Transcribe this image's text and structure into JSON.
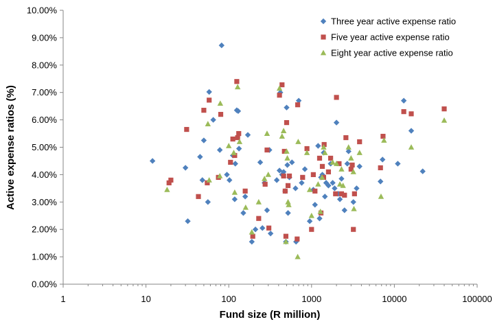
{
  "chart_data": {
    "type": "scatter",
    "title": "",
    "xlabel": "Fund size (R million)",
    "ylabel": "Active expense ratios (%)",
    "xscale": "log",
    "xlim": [
      1,
      100000
    ],
    "ylim": [
      0,
      10
    ],
    "x_ticks": [
      "1",
      "10",
      "100",
      "1000",
      "10000",
      "100000"
    ],
    "y_ticks": [
      "0.00%",
      "1.00%",
      "2.00%",
      "3.00%",
      "4.00%",
      "5.00%",
      "6.00%",
      "7.00%",
      "8.00%",
      "9.00%",
      "10.00%"
    ],
    "grid": "none",
    "legend_position": "top-right",
    "series": [
      {
        "name": "Three year active expense ratio",
        "color": "#4F81BD",
        "marker": "diamond",
        "points": [
          [
            12,
            4.5
          ],
          [
            30,
            4.25
          ],
          [
            32,
            2.3
          ],
          [
            45,
            4.65
          ],
          [
            48,
            3.8
          ],
          [
            50,
            5.25
          ],
          [
            56,
            3.0
          ],
          [
            58,
            7.02
          ],
          [
            65,
            6.0
          ],
          [
            78,
            4.9
          ],
          [
            82,
            8.72
          ],
          [
            95,
            4.0
          ],
          [
            102,
            3.8
          ],
          [
            112,
            4.7
          ],
          [
            118,
            3.1
          ],
          [
            120,
            4.4
          ],
          [
            125,
            6.35
          ],
          [
            130,
            6.32
          ],
          [
            133,
            4.95
          ],
          [
            150,
            2.6
          ],
          [
            158,
            3.2
          ],
          [
            170,
            5.45
          ],
          [
            190,
            1.55
          ],
          [
            210,
            2.0
          ],
          [
            240,
            4.45
          ],
          [
            255,
            2.05
          ],
          [
            270,
            3.7
          ],
          [
            290,
            2.7
          ],
          [
            310,
            4.9
          ],
          [
            320,
            1.85
          ],
          [
            380,
            3.8
          ],
          [
            410,
            4.15
          ],
          [
            420,
            7.0
          ],
          [
            440,
            4.0
          ],
          [
            460,
            4.1
          ],
          [
            480,
            3.4
          ],
          [
            490,
            1.55
          ],
          [
            500,
            6.45
          ],
          [
            510,
            4.35
          ],
          [
            520,
            2.6
          ],
          [
            540,
            3.9
          ],
          [
            580,
            4.45
          ],
          [
            640,
            3.5
          ],
          [
            650,
            1.55
          ],
          [
            700,
            6.7
          ],
          [
            760,
            3.7
          ],
          [
            830,
            4.2
          ],
          [
            950,
            2.3
          ],
          [
            1050,
            3.45
          ],
          [
            1100,
            2.9
          ],
          [
            1200,
            5.05
          ],
          [
            1250,
            2.4
          ],
          [
            1300,
            3.9
          ],
          [
            1350,
            4.0
          ],
          [
            1400,
            4.8
          ],
          [
            1450,
            3.2
          ],
          [
            1500,
            3.7
          ],
          [
            1600,
            3.6
          ],
          [
            1700,
            4.4
          ],
          [
            1800,
            3.7
          ],
          [
            1900,
            3.5
          ],
          [
            2000,
            5.9
          ],
          [
            2100,
            3.3
          ],
          [
            2200,
            3.1
          ],
          [
            2300,
            3.85
          ],
          [
            2500,
            2.7
          ],
          [
            2700,
            4.4
          ],
          [
            2800,
            4.85
          ],
          [
            3200,
            3.0
          ],
          [
            3500,
            3.5
          ],
          [
            3800,
            4.3
          ],
          [
            6800,
            3.75
          ],
          [
            7200,
            4.55
          ],
          [
            11000,
            4.4
          ],
          [
            13000,
            6.7
          ],
          [
            16000,
            5.6
          ],
          [
            22000,
            4.12
          ]
        ]
      },
      {
        "name": "Five year active expense ratio",
        "color": "#C0504D",
        "marker": "square",
        "points": [
          [
            19,
            3.7
          ],
          [
            20,
            3.8
          ],
          [
            31,
            5.65
          ],
          [
            43,
            3.2
          ],
          [
            50,
            6.35
          ],
          [
            55,
            3.7
          ],
          [
            58,
            6.72
          ],
          [
            75,
            3.9
          ],
          [
            80,
            6.2
          ],
          [
            105,
            4.45
          ],
          [
            112,
            5.3
          ],
          [
            118,
            4.7
          ],
          [
            125,
            7.4
          ],
          [
            128,
            5.35
          ],
          [
            132,
            5.5
          ],
          [
            158,
            3.4
          ],
          [
            195,
            1.75
          ],
          [
            230,
            2.4
          ],
          [
            275,
            3.65
          ],
          [
            290,
            4.9
          ],
          [
            305,
            2.05
          ],
          [
            410,
            6.9
          ],
          [
            440,
            7.28
          ],
          [
            460,
            3.95
          ],
          [
            470,
            4.85
          ],
          [
            480,
            3.4
          ],
          [
            490,
            1.75
          ],
          [
            500,
            5.9
          ],
          [
            520,
            3.6
          ],
          [
            540,
            3.95
          ],
          [
            670,
            1.65
          ],
          [
            680,
            6.55
          ],
          [
            780,
            3.9
          ],
          [
            880,
            4.95
          ],
          [
            1000,
            2.0
          ],
          [
            1050,
            4.0
          ],
          [
            1100,
            3.4
          ],
          [
            1250,
            4.6
          ],
          [
            1300,
            2.6
          ],
          [
            1350,
            4.3
          ],
          [
            1400,
            3.9
          ],
          [
            1420,
            5.1
          ],
          [
            1600,
            4.1
          ],
          [
            1700,
            4.6
          ],
          [
            1950,
            3.3
          ],
          [
            2000,
            6.82
          ],
          [
            2150,
            4.4
          ],
          [
            2300,
            3.3
          ],
          [
            2500,
            3.25
          ],
          [
            2600,
            5.35
          ],
          [
            3000,
            4.2
          ],
          [
            3100,
            4.35
          ],
          [
            3200,
            2.0
          ],
          [
            3300,
            3.3
          ],
          [
            3800,
            5.2
          ],
          [
            6800,
            4.25
          ],
          [
            7300,
            5.4
          ],
          [
            13000,
            6.3
          ],
          [
            16000,
            6.22
          ],
          [
            40000,
            6.4
          ]
        ]
      },
      {
        "name": "Eight year active expense ratio",
        "color": "#9BBB59",
        "marker": "triangle",
        "points": [
          [
            18,
            3.45
          ],
          [
            56,
            5.85
          ],
          [
            58,
            3.8
          ],
          [
            78,
            3.95
          ],
          [
            79,
            6.6
          ],
          [
            100,
            5.05
          ],
          [
            115,
            4.8
          ],
          [
            118,
            3.35
          ],
          [
            128,
            7.2
          ],
          [
            135,
            5.2
          ],
          [
            160,
            2.8
          ],
          [
            190,
            1.9
          ],
          [
            230,
            3.0
          ],
          [
            270,
            3.85
          ],
          [
            290,
            5.5
          ],
          [
            300,
            4.0
          ],
          [
            410,
            7.15
          ],
          [
            440,
            5.4
          ],
          [
            460,
            5.6
          ],
          [
            490,
            1.55
          ],
          [
            500,
            4.85
          ],
          [
            510,
            4.6
          ],
          [
            520,
            3.0
          ],
          [
            530,
            2.9
          ],
          [
            680,
            1.0
          ],
          [
            690,
            5.2
          ],
          [
            880,
            4.8
          ],
          [
            950,
            3.45
          ],
          [
            1000,
            2.5
          ],
          [
            1200,
            3.65
          ],
          [
            1280,
            2.65
          ],
          [
            1340,
            3.9
          ],
          [
            1400,
            5.0
          ],
          [
            1450,
            4.8
          ],
          [
            1800,
            4.45
          ],
          [
            2000,
            4.4
          ],
          [
            2200,
            3.65
          ],
          [
            2300,
            4.2
          ],
          [
            2400,
            3.6
          ],
          [
            2800,
            5.0
          ],
          [
            3000,
            4.6
          ],
          [
            3200,
            4.1
          ],
          [
            3250,
            2.75
          ],
          [
            3800,
            4.8
          ],
          [
            6900,
            3.2
          ],
          [
            7500,
            5.25
          ],
          [
            16000,
            5.0
          ],
          [
            40000,
            5.98
          ]
        ]
      }
    ]
  }
}
